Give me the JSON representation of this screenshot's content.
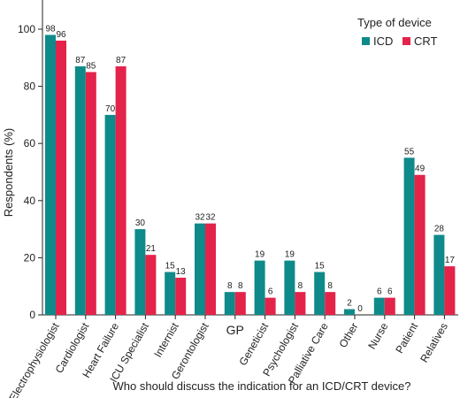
{
  "chart_data": {
    "type": "bar",
    "xlabel": "Who should discuss the indication for an ICD/CRT device?",
    "ylabel": "Respondents (%)",
    "ylim": [
      0,
      100
    ],
    "yticks": [
      0,
      20,
      40,
      60,
      80,
      100
    ],
    "grid": false,
    "legend": {
      "title": "Type of device",
      "placement": "top-right"
    },
    "categories": [
      "Electrophysiologist",
      "Cardiologist",
      "Heart Failure",
      "ICU Specialist",
      "Internist",
      "Gerontologist",
      "GP",
      "Geneticist",
      "Psychologist",
      "Palliative Care",
      "Other",
      "Nurse",
      "Patient",
      "Relatives"
    ],
    "series": [
      {
        "name": "ICD",
        "color": "#0f8a8a",
        "values": [
          98,
          87,
          70,
          30,
          15,
          32,
          8,
          19,
          19,
          15,
          2,
          6,
          55,
          28
        ]
      },
      {
        "name": "CRT",
        "color": "#e4234a",
        "values": [
          96,
          85,
          87,
          21,
          13,
          32,
          8,
          6,
          8,
          8,
          0,
          6,
          49,
          17
        ]
      }
    ]
  }
}
